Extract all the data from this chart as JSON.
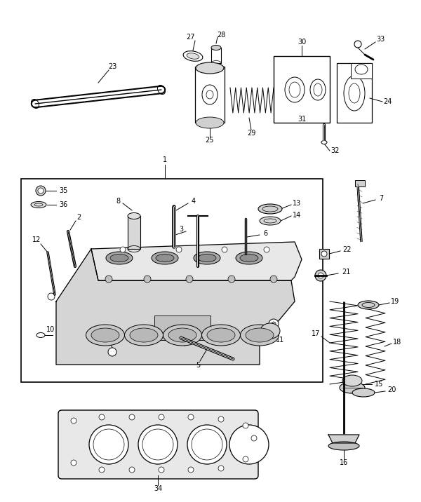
{
  "bg_color": "#ffffff",
  "line_color": "#000000",
  "figsize": [
    6.0,
    7.16
  ],
  "dpi": 100,
  "font_size": 7.0
}
